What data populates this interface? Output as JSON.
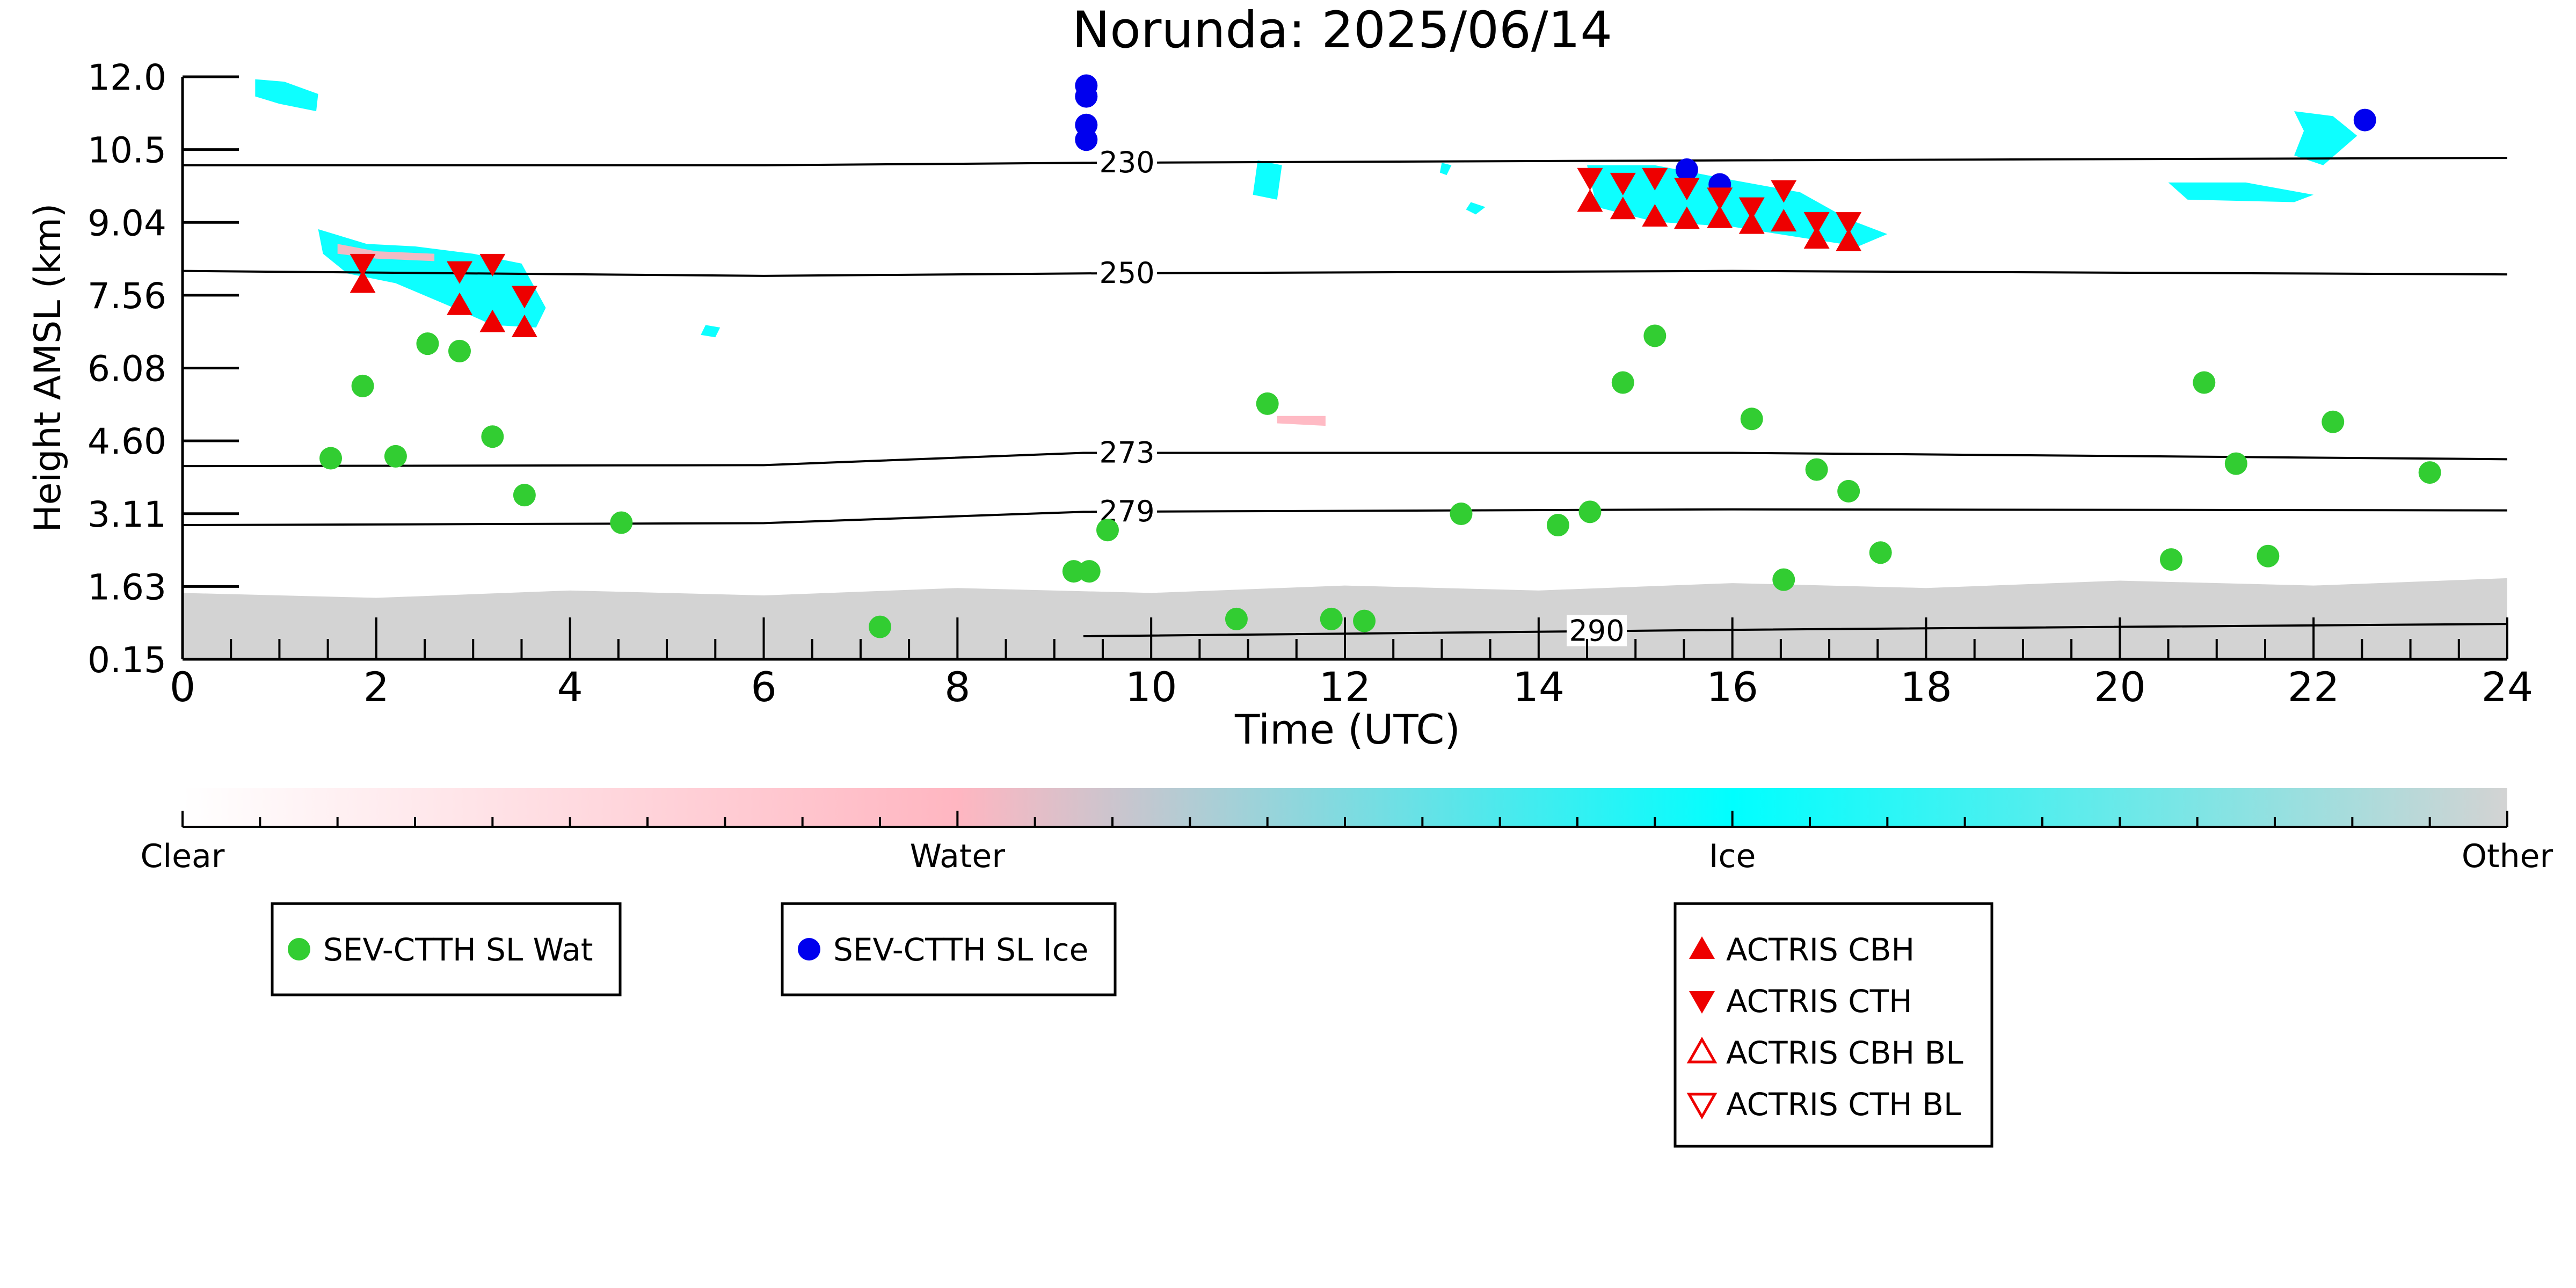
{
  "chart_data": {
    "type": "scatter",
    "title": "Norunda: 2025/06/14",
    "xlabel": "Time (UTC)",
    "ylabel": "Height AMSL (km)",
    "xlim": [
      0,
      24
    ],
    "ylim": [
      0.15,
      12.0
    ],
    "x_ticks": [
      0,
      2,
      4,
      6,
      8,
      10,
      12,
      14,
      16,
      18,
      20,
      22,
      24
    ],
    "y_ticks": [
      "0.15",
      "1.63",
      "3.11",
      "4.60",
      "6.08",
      "7.56",
      "9.04",
      "10.5",
      "12.0"
    ],
    "colorbar": {
      "labels": [
        "Clear",
        "Water",
        "Ice",
        "Other"
      ],
      "colors": [
        "#ffffff",
        "#ffb6c1",
        "#00ffff",
        "#d3d3d3"
      ]
    },
    "isotherms": [
      {
        "label": "230",
        "points": [
          [
            0,
            10.2
          ],
          [
            6,
            10.2
          ],
          [
            9.3,
            10.25
          ],
          [
            16,
            10.3
          ],
          [
            24,
            10.35
          ]
        ]
      },
      {
        "label": "250",
        "points": [
          [
            0,
            8.05
          ],
          [
            6,
            7.95
          ],
          [
            9.3,
            8.0
          ],
          [
            16,
            8.05
          ],
          [
            24,
            7.98
          ]
        ]
      },
      {
        "label": "273",
        "points": [
          [
            0,
            4.08
          ],
          [
            6,
            4.1
          ],
          [
            9.3,
            4.35
          ],
          [
            16,
            4.35
          ],
          [
            24,
            4.22
          ]
        ]
      },
      {
        "label": "279",
        "points": [
          [
            0,
            2.88
          ],
          [
            6,
            2.92
          ],
          [
            9.3,
            3.15
          ],
          [
            16,
            3.2
          ],
          [
            24,
            3.18
          ]
        ]
      },
      {
        "label": "290",
        "points": [
          [
            9.3,
            0.62
          ],
          [
            16,
            0.75
          ],
          [
            24,
            0.87
          ]
        ]
      }
    ],
    "series": [
      {
        "name": "SEV-CTTH SL Wat",
        "color": "#32cd32",
        "marker": "circle",
        "x": [
          1.53,
          1.86,
          2.2,
          2.53,
          2.86,
          3.2,
          3.53,
          4.53,
          7.2,
          9.2,
          9.36,
          9.55,
          10.88,
          11.2,
          11.86,
          12.2,
          13.2,
          14.2,
          14.53,
          14.87,
          15.2,
          16.2,
          16.53,
          16.87,
          17.2,
          17.53,
          20.53,
          20.87,
          21.2,
          21.53,
          22.2,
          23.2
        ],
        "y": [
          4.24,
          5.71,
          4.28,
          6.57,
          6.42,
          4.68,
          3.49,
          2.93,
          0.81,
          1.94,
          1.94,
          2.78,
          0.97,
          5.35,
          0.97,
          0.93,
          3.11,
          2.88,
          3.15,
          5.78,
          6.73,
          5.04,
          1.77,
          4.01,
          3.57,
          2.32,
          2.18,
          5.78,
          4.13,
          2.25,
          4.98,
          3.95
        ]
      },
      {
        "name": "SEV-CTTH SL Ice",
        "color": "#0000ee",
        "marker": "circle",
        "x": [
          9.33,
          9.33,
          9.33,
          9.33,
          15.53,
          15.87,
          22.53
        ],
        "y": [
          11.82,
          11.6,
          11.02,
          10.72,
          10.11,
          9.81,
          11.12
        ]
      },
      {
        "name": "ACTRIS CBH",
        "color": "#ee0000",
        "marker": "triangle-up",
        "x": [
          1.86,
          2.86,
          3.2,
          3.53,
          14.53,
          14.87,
          15.2,
          15.53,
          15.87,
          16.2,
          16.53,
          16.87,
          17.2
        ],
        "y": [
          7.8,
          7.35,
          7.0,
          6.9,
          9.45,
          9.3,
          9.15,
          9.1,
          9.12,
          9.0,
          9.05,
          8.7,
          8.65
        ]
      },
      {
        "name": "ACTRIS CTH",
        "color": "#ee0000",
        "marker": "triangle-down",
        "x": [
          1.86,
          2.86,
          3.2,
          3.53,
          14.53,
          14.87,
          15.2,
          15.53,
          15.87,
          16.2,
          16.53,
          16.87,
          17.2
        ],
        "y": [
          8.2,
          8.05,
          8.2,
          7.55,
          9.95,
          9.85,
          9.95,
          9.75,
          9.55,
          9.35,
          9.7,
          9.05,
          9.05
        ]
      },
      {
        "name": "ACTRIS CBH BL",
        "color": "#ee0000",
        "marker": "triangle-up-open",
        "x": [],
        "y": []
      },
      {
        "name": "ACTRIS CTH BL",
        "color": "#ee0000",
        "marker": "triangle-down-open",
        "x": [],
        "y": []
      }
    ],
    "cloud_regions": [
      {
        "class": "Ice",
        "polygon": [
          [
            0.75,
            11.95
          ],
          [
            1.05,
            11.9
          ],
          [
            1.4,
            11.65
          ],
          [
            1.38,
            11.3
          ],
          [
            1.0,
            11.45
          ],
          [
            0.75,
            11.6
          ]
        ]
      },
      {
        "class": "Ice",
        "polygon": [
          [
            1.4,
            8.9
          ],
          [
            1.9,
            8.6
          ],
          [
            2.4,
            8.55
          ],
          [
            3.0,
            8.4
          ],
          [
            3.5,
            8.2
          ],
          [
            3.75,
            7.3
          ],
          [
            3.65,
            6.9
          ],
          [
            3.2,
            6.95
          ],
          [
            2.8,
            7.3
          ],
          [
            2.2,
            7.8
          ],
          [
            1.7,
            8.0
          ],
          [
            1.45,
            8.4
          ]
        ]
      },
      {
        "class": "Water",
        "polygon": [
          [
            1.6,
            8.6
          ],
          [
            2.0,
            8.45
          ],
          [
            2.6,
            8.4
          ],
          [
            2.6,
            8.25
          ],
          [
            2.0,
            8.3
          ],
          [
            1.6,
            8.4
          ]
        ]
      },
      {
        "class": "Ice",
        "polygon": [
          [
            5.4,
            6.95
          ],
          [
            5.55,
            6.9
          ],
          [
            5.5,
            6.7
          ],
          [
            5.35,
            6.75
          ]
        ]
      },
      {
        "class": "Ice",
        "polygon": [
          [
            11.1,
            10.3
          ],
          [
            11.35,
            10.2
          ],
          [
            11.3,
            9.5
          ],
          [
            11.05,
            9.6
          ]
        ]
      },
      {
        "class": "Water",
        "polygon": [
          [
            11.3,
            5.1
          ],
          [
            11.8,
            5.1
          ],
          [
            11.8,
            4.9
          ],
          [
            11.3,
            4.95
          ]
        ]
      },
      {
        "class": "Ice",
        "polygon": [
          [
            13.0,
            10.25
          ],
          [
            13.1,
            10.2
          ],
          [
            13.05,
            10.0
          ],
          [
            12.98,
            10.05
          ]
        ]
      },
      {
        "class": "Ice",
        "polygon": [
          [
            13.3,
            9.45
          ],
          [
            13.45,
            9.35
          ],
          [
            13.35,
            9.2
          ],
          [
            13.25,
            9.3
          ]
        ]
      },
      {
        "class": "Ice",
        "polygon": [
          [
            14.5,
            10.2
          ],
          [
            15.2,
            10.2
          ],
          [
            16.0,
            9.9
          ],
          [
            16.7,
            9.65
          ],
          [
            17.2,
            9.1
          ],
          [
            17.6,
            8.8
          ],
          [
            17.3,
            8.55
          ],
          [
            16.8,
            8.7
          ],
          [
            16.0,
            8.95
          ],
          [
            15.2,
            9.05
          ],
          [
            14.6,
            9.35
          ]
        ]
      },
      {
        "class": "Ice",
        "polygon": [
          [
            21.8,
            11.3
          ],
          [
            22.2,
            11.2
          ],
          [
            22.45,
            10.8
          ],
          [
            22.1,
            10.2
          ],
          [
            21.8,
            10.4
          ],
          [
            21.9,
            10.9
          ]
        ]
      },
      {
        "class": "Ice",
        "polygon": [
          [
            20.5,
            9.85
          ],
          [
            21.3,
            9.85
          ],
          [
            22.0,
            9.6
          ],
          [
            21.8,
            9.45
          ],
          [
            20.7,
            9.5
          ]
        ]
      },
      {
        "class": "Other",
        "polygon": [
          [
            0,
            1.5
          ],
          [
            2.0,
            1.4
          ],
          [
            4.0,
            1.55
          ],
          [
            6.0,
            1.45
          ],
          [
            8.0,
            1.6
          ],
          [
            10.0,
            1.5
          ],
          [
            12.0,
            1.65
          ],
          [
            14.0,
            1.55
          ],
          [
            16.0,
            1.7
          ],
          [
            18.0,
            1.6
          ],
          [
            20.0,
            1.75
          ],
          [
            22.0,
            1.65
          ],
          [
            24.0,
            1.8
          ],
          [
            24.0,
            0.15
          ],
          [
            0,
            0.15
          ]
        ]
      }
    ],
    "legends": [
      {
        "entries": [
          "SEV-CTTH SL Wat"
        ]
      },
      {
        "entries": [
          "SEV-CTTH SL Ice"
        ]
      },
      {
        "entries": [
          "ACTRIS CBH",
          "ACTRIS CTH",
          "ACTRIS CBH BL",
          "ACTRIS CTH BL"
        ]
      }
    ]
  }
}
